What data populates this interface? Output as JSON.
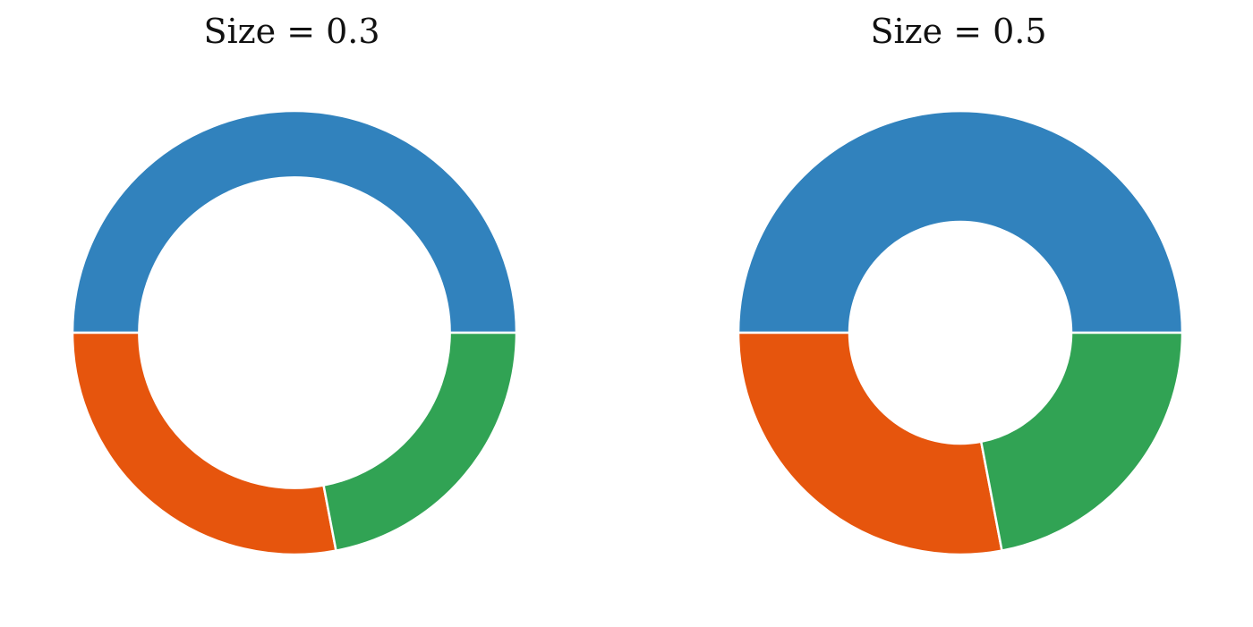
{
  "chart_data": [
    {
      "type": "pie",
      "title": "Size = 0.3",
      "donut_size": 0.3,
      "slices": [
        {
          "value": 0.5,
          "color": "#3182bd"
        },
        {
          "value": 0.28,
          "color": "#e6550d"
        },
        {
          "value": 0.22,
          "color": "#31a354"
        }
      ]
    },
    {
      "type": "pie",
      "title": "Size = 0.5",
      "donut_size": 0.5,
      "slices": [
        {
          "value": 0.5,
          "color": "#3182bd"
        },
        {
          "value": 0.28,
          "color": "#e6550d"
        },
        {
          "value": 0.22,
          "color": "#31a354"
        }
      ]
    }
  ]
}
